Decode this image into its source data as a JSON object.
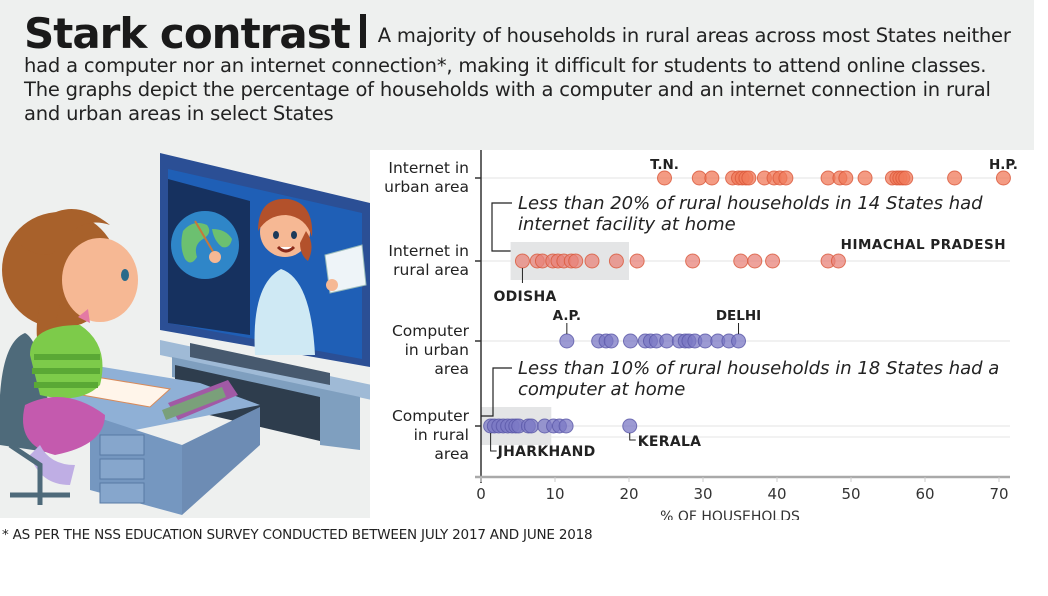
{
  "header": {
    "title": "Stark contrast",
    "standfirst": "A majority of households in rural areas across most States neither had a computer nor an internet connection*, making it difficult for students to attend online classes. The graphs depict the percentage of households with a computer and an internet connection in rural and urban areas in select States"
  },
  "illustration": {
    "description": "Girl at a desk watching a teacher on a TV screen pointing at a globe"
  },
  "footnote": "* AS PER THE NSS EDUCATION SURVEY CONDUCTED BETWEEN JULY 2017 AND JUNE 2018",
  "colors": {
    "internet": "#f07a5a",
    "internet_stroke": "#d9573a",
    "internet_rural": "#e8837a",
    "computer": "#7b78c4",
    "computer_stroke": "#5a57a8",
    "highlight_box": "#e4e5e6",
    "panel_bg": "#eef0ef"
  },
  "chart_data": {
    "type": "scatter",
    "subtype": "strip-plot",
    "xlabel": "% OF HOUSEHOLDS",
    "xlim": [
      0,
      72
    ],
    "xticks": [
      0,
      10,
      20,
      30,
      40,
      50,
      60,
      70
    ],
    "grid": true,
    "categories": [
      "Internet in urban area",
      "Internet in rural area",
      "Computer in urban area",
      "Computer in rural area"
    ],
    "category_labels": [
      [
        "Internet in",
        "urban area"
      ],
      [
        "Internet in",
        "rural area"
      ],
      [
        "Computer",
        "in urban",
        "area"
      ],
      [
        "Computer",
        "in rural",
        "area"
      ]
    ],
    "series": [
      {
        "name": "Internet in urban area",
        "color_key": "internet",
        "values": [
          24.8,
          29.5,
          31.2,
          34.0,
          34.8,
          35.3,
          35.8,
          36.2,
          38.3,
          39.6,
          40.4,
          41.2,
          46.9,
          48.5,
          49.3,
          51.9,
          55.6,
          56.2,
          56.6,
          57.0,
          57.4,
          64.0,
          70.6
        ],
        "labels": [
          {
            "text": "T.N.",
            "value": 24.8
          },
          {
            "text": "H.P.",
            "value": 70.6
          }
        ]
      },
      {
        "name": "Internet in rural area",
        "color_key": "internet_rural",
        "values": [
          5.6,
          7.6,
          8.3,
          9.7,
          10.4,
          11.2,
          12.2,
          12.8,
          15.0,
          18.3,
          21.1,
          28.6,
          35.1,
          37.0,
          39.4,
          46.9,
          48.3
        ],
        "labels": [
          {
            "text": "ODISHA",
            "value": 5.6,
            "position": "below"
          },
          {
            "text": "HIMACHAL PRADESH",
            "value": 48.3,
            "position": "above"
          }
        ]
      },
      {
        "name": "Computer in urban area",
        "color_key": "computer",
        "values": [
          11.6,
          15.9,
          16.9,
          17.6,
          20.2,
          22.2,
          22.9,
          23.7,
          25.1,
          26.8,
          27.6,
          28.1,
          28.9,
          30.3,
          32.0,
          33.5,
          34.8
        ],
        "labels": [
          {
            "text": "A.P.",
            "value": 11.6
          },
          {
            "text": "DELHI",
            "value": 34.8
          }
        ]
      },
      {
        "name": "Computer in rural area",
        "color_key": "computer",
        "values": [
          1.3,
          1.8,
          2.4,
          3.0,
          3.6,
          4.2,
          4.7,
          5.1,
          6.4,
          6.8,
          8.6,
          9.8,
          10.6,
          11.5,
          20.1
        ],
        "labels": [
          {
            "text": "JHARKHAND",
            "value": 1.3,
            "position": "below"
          },
          {
            "text": "KERALA",
            "value": 20.1,
            "position": "below-right"
          }
        ]
      }
    ],
    "annotations": [
      {
        "row": "Internet in rural area",
        "text": [
          "Less than 20% of rural households in 14 States had",
          "internet facility at home"
        ],
        "range": [
          4.0,
          20.0
        ]
      },
      {
        "row": "Computer in rural area",
        "text": [
          "Less than 10% of rural households in 18 States had a",
          "computer at home"
        ],
        "range": [
          0.0,
          9.5
        ]
      }
    ]
  }
}
